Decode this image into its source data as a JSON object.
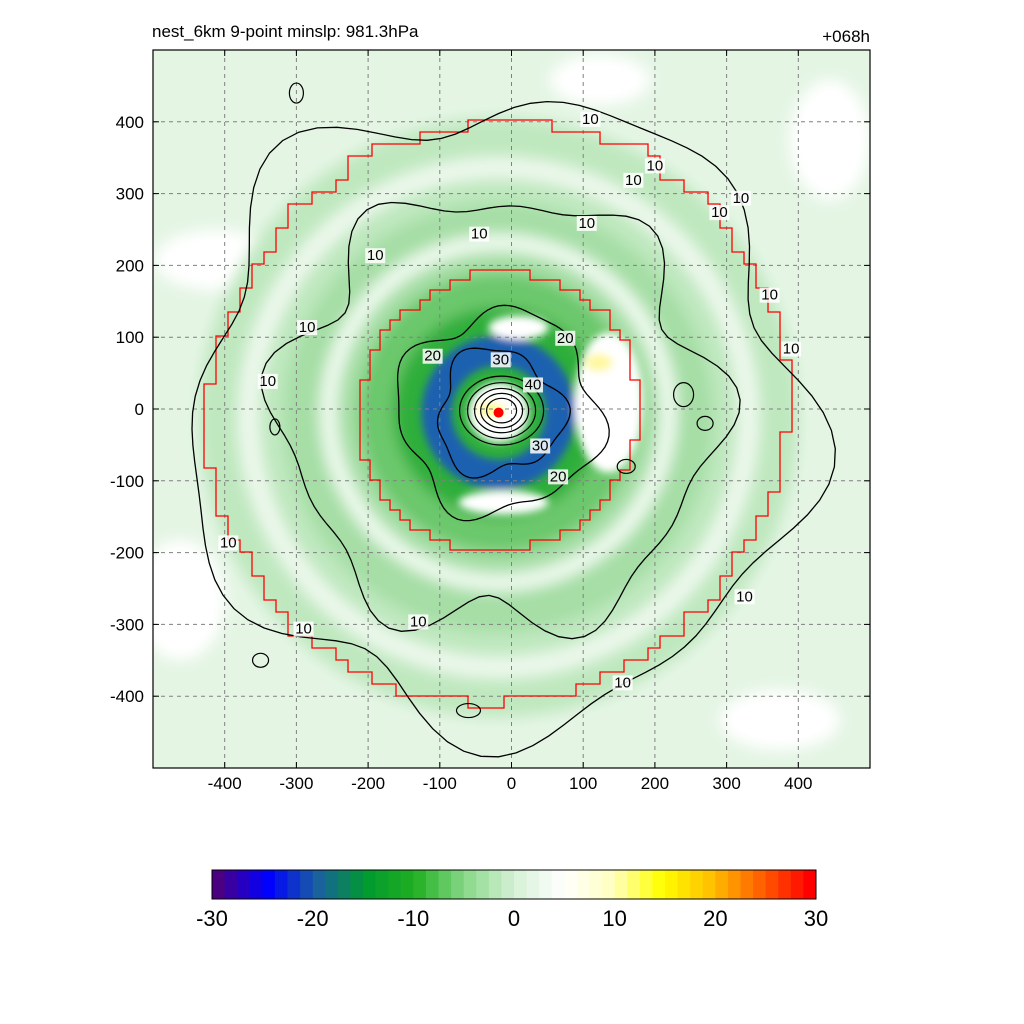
{
  "header": {
    "title_left": "nest_6km  9-point minslp: 981.3hPa",
    "title_right": "+068h"
  },
  "chart_data": {
    "type": "heatmap",
    "title": "nest_6km  9-point minslp: 981.3hPa",
    "forecast_hour": "+068h",
    "xlim": [
      -500,
      500
    ],
    "ylim": [
      -500,
      500
    ],
    "xticks": [
      -400,
      -300,
      -200,
      -100,
      0,
      100,
      200,
      300,
      400
    ],
    "yticks": [
      -400,
      -300,
      -200,
      -100,
      0,
      100,
      200,
      300,
      400
    ],
    "grid": true,
    "center": [
      -18,
      -5
    ],
    "colorbar": {
      "range": [
        -30,
        30
      ],
      "ticks": [
        -30,
        -20,
        -10,
        0,
        10,
        20,
        30
      ],
      "colors": [
        "#4b0082",
        "#0000ff",
        "#1a5fa0",
        "#009a2e",
        "#22b022",
        "#88d888",
        "#d6f0d6",
        "#ffffff",
        "#ffffc0",
        "#ffff00",
        "#ffc000",
        "#ff6000",
        "#ff0000"
      ]
    },
    "contour_levels": [
      10,
      20,
      30,
      40
    ],
    "contour_labels": [
      {
        "text": "10",
        "x": 110,
        "y": 400
      },
      {
        "text": "10",
        "x": 200,
        "y": 335
      },
      {
        "text": "10",
        "x": 170,
        "y": 315
      },
      {
        "text": "10",
        "x": 105,
        "y": 255
      },
      {
        "text": "10",
        "x": -45,
        "y": 240
      },
      {
        "text": "10",
        "x": -190,
        "y": 210
      },
      {
        "text": "10",
        "x": 290,
        "y": 270
      },
      {
        "text": "10",
        "x": 320,
        "y": 290
      },
      {
        "text": "10",
        "x": 360,
        "y": 155
      },
      {
        "text": "10",
        "x": 390,
        "y": 80
      },
      {
        "text": "10",
        "x": -285,
        "y": 110
      },
      {
        "text": "10",
        "x": -340,
        "y": 35
      },
      {
        "text": "10",
        "x": -395,
        "y": -190
      },
      {
        "text": "10",
        "x": -290,
        "y": -310
      },
      {
        "text": "10",
        "x": -130,
        "y": -300
      },
      {
        "text": "10",
        "x": 325,
        "y": -265
      },
      {
        "text": "10",
        "x": 155,
        "y": -385
      },
      {
        "text": "20",
        "x": -110,
        "y": 70
      },
      {
        "text": "20",
        "x": 75,
        "y": 95
      },
      {
        "text": "20",
        "x": 65,
        "y": -98
      },
      {
        "text": "30",
        "x": -15,
        "y": 65
      },
      {
        "text": "30",
        "x": 40,
        "y": -55
      },
      {
        "text": "40",
        "x": 30,
        "y": 30
      }
    ]
  }
}
